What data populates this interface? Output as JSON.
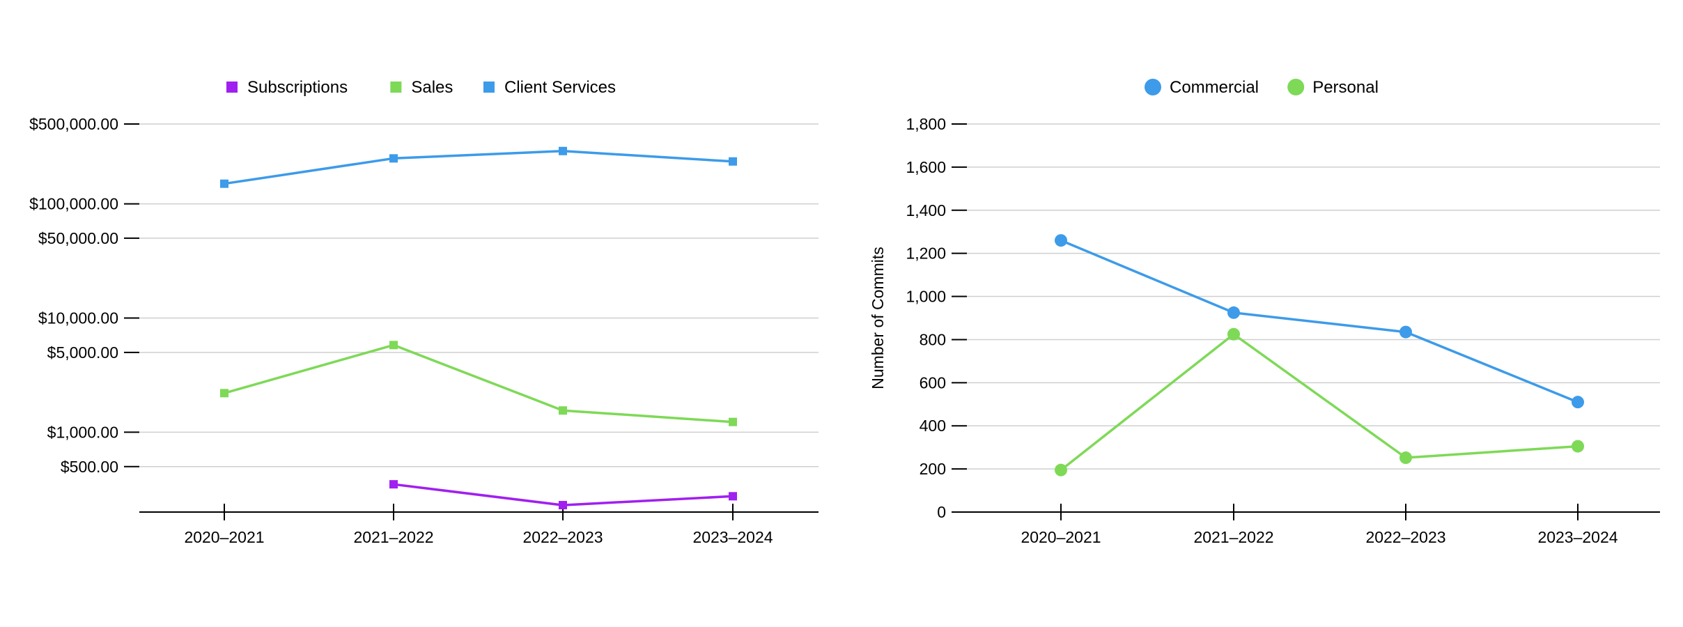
{
  "colors": {
    "purple": "#a020f0",
    "green": "#7ed957",
    "blue": "#3d9be9"
  },
  "chart_data": [
    {
      "type": "line",
      "title": "",
      "xlabel": "",
      "ylabel": "",
      "scale": "log",
      "ylim": [
        200,
        500000
      ],
      "yticks": [
        500000,
        100000,
        50000,
        10000,
        5000,
        1000,
        500
      ],
      "ytick_labels": [
        "$500,000.00",
        "$100,000.00",
        "$50,000.00",
        "$10,000.00",
        "$5,000.00",
        "$1,000.00",
        "$500.00"
      ],
      "categories": [
        "2020–2021",
        "2021–2022",
        "2022–2023",
        "2023–2024"
      ],
      "legend": "top-center",
      "marker": "square",
      "series": [
        {
          "name": "Subscriptions",
          "color": "#a020f0",
          "values": [
            null,
            350,
            230,
            275
          ]
        },
        {
          "name": "Sales",
          "color": "#7ed957",
          "values": [
            2200,
            5800,
            1550,
            1230
          ]
        },
        {
          "name": "Client Services",
          "color": "#3d9be9",
          "values": [
            150000,
            250000,
            290000,
            235000
          ]
        }
      ]
    },
    {
      "type": "line",
      "title": "",
      "xlabel": "",
      "ylabel": "Number of Commits",
      "scale": "linear",
      "ylim": [
        0,
        1800
      ],
      "yticks": [
        1800,
        1600,
        1400,
        1200,
        1000,
        800,
        600,
        400,
        200,
        0
      ],
      "ytick_labels": [
        "1,800",
        "1,600",
        "1,400",
        "1,200",
        "1,000",
        "800",
        "600",
        "400",
        "200",
        "0"
      ],
      "categories": [
        "2020–2021",
        "2021–2022",
        "2022–2023",
        "2023–2024"
      ],
      "legend": "top-center",
      "marker": "circle",
      "series": [
        {
          "name": "Commercial",
          "color": "#3d9be9",
          "values": [
            1260,
            925,
            835,
            510
          ]
        },
        {
          "name": "Personal",
          "color": "#7ed957",
          "values": [
            195,
            825,
            252,
            305
          ]
        }
      ]
    }
  ]
}
